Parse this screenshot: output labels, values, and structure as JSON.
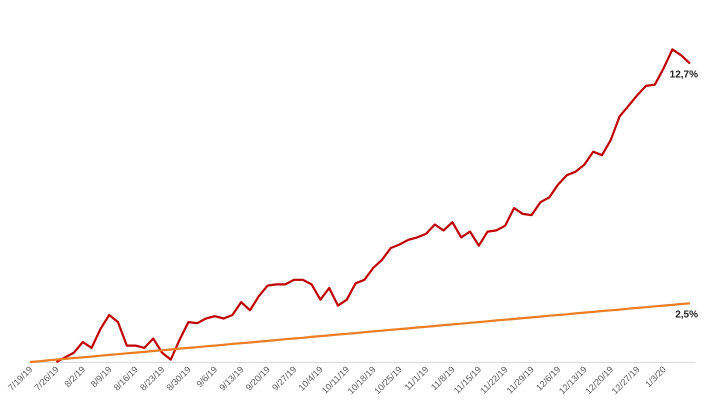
{
  "chart_data": {
    "type": "line",
    "categories": [
      "7/19/19",
      null,
      null,
      "7/26/19",
      null,
      null,
      "8/2/19",
      null,
      null,
      "8/9/19",
      null,
      null,
      "8/16/19",
      null,
      null,
      "8/23/19",
      null,
      null,
      "8/30/19",
      null,
      null,
      "9/6/19",
      null,
      null,
      "9/13/19",
      null,
      null,
      "9/20/19",
      null,
      null,
      "9/27/19",
      null,
      null,
      "10/4/19",
      null,
      null,
      "10/11/19",
      null,
      null,
      "10/18/19",
      null,
      null,
      "10/25/19",
      null,
      null,
      "11/1/19",
      null,
      null,
      "11/8/19",
      null,
      null,
      "11/15/19",
      null,
      null,
      "11/22/19",
      null,
      null,
      "11/29/19",
      null,
      null,
      "12/6/19",
      null,
      null,
      "12/13/19",
      null,
      null,
      "12/20/19",
      null,
      null,
      "12/27/19",
      null,
      null,
      "1/3/20",
      null,
      null,
      null
    ],
    "series": [
      {
        "color": "#c00000",
        "values": [
          null,
          null,
          null,
          0,
          0.2,
          0.4,
          0.85,
          0.6,
          1.4,
          2.0,
          1.7,
          0.7,
          0.7,
          0.6,
          1.0,
          0.4,
          0.1,
          0.95,
          1.7,
          1.65,
          1.85,
          1.95,
          1.85,
          2.0,
          2.55,
          2.2,
          2.8,
          3.25,
          3.3,
          3.3,
          3.5,
          3.5,
          3.3,
          2.65,
          3.15,
          2.4,
          2.65,
          3.35,
          3.5,
          4.0,
          4.35,
          4.85,
          5.0,
          5.2,
          5.3,
          5.45,
          5.85,
          5.6,
          5.95,
          5.3,
          5.55,
          4.95,
          5.55,
          5.6,
          5.8,
          6.55,
          6.3,
          6.25,
          6.8,
          7.0,
          7.55,
          7.95,
          8.1,
          8.4,
          8.95,
          8.8,
          9.45,
          10.45,
          10.9,
          11.35,
          11.75,
          11.8,
          12.5,
          13.3,
          13.05,
          12.7
        ],
        "value_labels": [
          null,
          null,
          null,
          null,
          null,
          null,
          null,
          null,
          null,
          null,
          null,
          null,
          null,
          null,
          null,
          null,
          null,
          null,
          null,
          null,
          null,
          null,
          null,
          null,
          null,
          null,
          null,
          null,
          null,
          null,
          null,
          null,
          null,
          null,
          null,
          null,
          null,
          null,
          null,
          null,
          null,
          null,
          null,
          null,
          null,
          null,
          null,
          null,
          null,
          null,
          null,
          null,
          null,
          null,
          null,
          null,
          null,
          null,
          null,
          null,
          null,
          null,
          null,
          null,
          null,
          null,
          null,
          null,
          null,
          null,
          null,
          null,
          null,
          null,
          null,
          "12,7%"
        ]
      },
      {
        "color": "#ed7d22",
        "values": [
          0,
          0.03,
          0.07,
          0.1,
          0.13,
          0.17,
          0.2,
          0.23,
          0.27,
          0.3,
          0.33,
          0.37,
          0.4,
          0.43,
          0.47,
          0.5,
          0.53,
          0.57,
          0.6,
          0.63,
          0.67,
          0.7,
          0.73,
          0.77,
          0.8,
          0.83,
          0.87,
          0.9,
          0.93,
          0.97,
          1.0,
          1.03,
          1.07,
          1.1,
          1.13,
          1.17,
          1.2,
          1.23,
          1.27,
          1.3,
          1.33,
          1.37,
          1.4,
          1.43,
          1.47,
          1.5,
          1.53,
          1.57,
          1.6,
          1.63,
          1.67,
          1.7,
          1.73,
          1.77,
          1.8,
          1.83,
          1.87,
          1.9,
          1.93,
          1.97,
          2.0,
          2.03,
          2.07,
          2.1,
          2.13,
          2.17,
          2.2,
          2.23,
          2.27,
          2.3,
          2.33,
          2.37,
          2.4,
          2.43,
          2.47,
          2.5
        ],
        "value_labels": [
          null,
          null,
          null,
          null,
          null,
          null,
          null,
          null,
          null,
          null,
          null,
          null,
          null,
          null,
          null,
          null,
          null,
          null,
          null,
          null,
          null,
          null,
          null,
          null,
          null,
          null,
          null,
          null,
          null,
          null,
          null,
          null,
          null,
          null,
          null,
          null,
          null,
          null,
          null,
          null,
          null,
          null,
          null,
          null,
          null,
          null,
          null,
          null,
          null,
          null,
          null,
          null,
          null,
          null,
          null,
          null,
          null,
          null,
          null,
          null,
          null,
          null,
          null,
          null,
          null,
          null,
          null,
          null,
          null,
          null,
          null,
          null,
          null,
          null,
          null,
          "2,5%"
        ]
      }
    ],
    "ylim": [
      0,
      14
    ]
  }
}
